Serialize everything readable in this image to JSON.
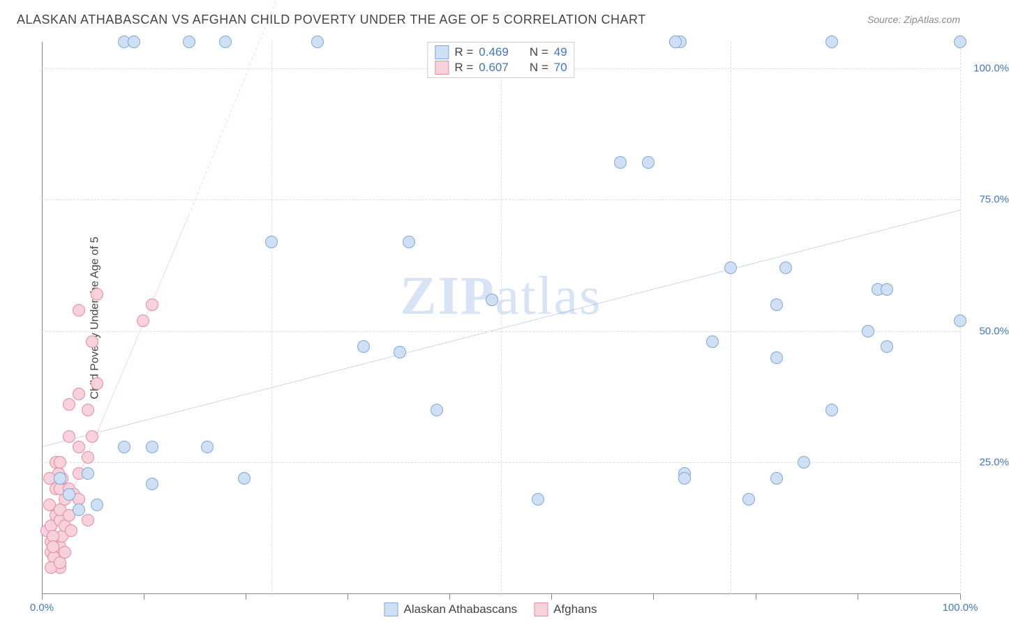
{
  "title": "ALASKAN ATHABASCAN VS AFGHAN CHILD POVERTY UNDER THE AGE OF 5 CORRELATION CHART",
  "source_prefix": "Source: ",
  "source_name": "ZipAtlas.com",
  "watermark_bold": "ZIP",
  "watermark_rest": "atlas",
  "y_axis_title": "Child Poverty Under the Age of 5",
  "x_min_label": "0.0%",
  "x_max_label": "100.0%",
  "y_ticks": [
    {
      "pct": 25,
      "label": "25.0%"
    },
    {
      "pct": 50,
      "label": "50.0%"
    },
    {
      "pct": 75,
      "label": "75.0%"
    },
    {
      "pct": 100,
      "label": "100.0%"
    }
  ],
  "x_grid_positions_pct": [
    25,
    50,
    75,
    100
  ],
  "x_tick_positions_pct": [
    0,
    11.1,
    22.2,
    33.3,
    44.4,
    55.5,
    66.6,
    77.7,
    88.8,
    100
  ],
  "x_domain": [
    0,
    100
  ],
  "y_domain": [
    0,
    105
  ],
  "series": {
    "athabascan": {
      "label": "Alaskan Athabascans",
      "R": "0.469",
      "N": "49",
      "fill": "#cfe0f5",
      "stroke": "#7da8d9",
      "trend_color": "#2566c4",
      "trend_width": 2,
      "trend": {
        "x1": 0,
        "y1": 28,
        "x2": 100,
        "y2": 73,
        "dash_from_x": 100
      },
      "points": [
        [
          2,
          22
        ],
        [
          3,
          19
        ],
        [
          4,
          16
        ],
        [
          5,
          23
        ],
        [
          9,
          105
        ],
        [
          16,
          105
        ],
        [
          9,
          28
        ],
        [
          12,
          21
        ],
        [
          6,
          17
        ],
        [
          18,
          28
        ],
        [
          12,
          28
        ],
        [
          22,
          22
        ],
        [
          30,
          105
        ],
        [
          25,
          67
        ],
        [
          69,
          105
        ],
        [
          35,
          47
        ],
        [
          39,
          46
        ],
        [
          40,
          67
        ],
        [
          43,
          35
        ],
        [
          54,
          18
        ],
        [
          63,
          82
        ],
        [
          66,
          82
        ],
        [
          70,
          23
        ],
        [
          70,
          22
        ],
        [
          73,
          48
        ],
        [
          75,
          62
        ],
        [
          80,
          45
        ],
        [
          77,
          18
        ],
        [
          80,
          22
        ],
        [
          81,
          62
        ],
        [
          80,
          55
        ],
        [
          83,
          25
        ],
        [
          86,
          105
        ],
        [
          86,
          35
        ],
        [
          90,
          50
        ],
        [
          91,
          58
        ],
        [
          92,
          47
        ],
        [
          92,
          58
        ],
        [
          100,
          52
        ],
        [
          100,
          105
        ],
        [
          69.5,
          105
        ],
        [
          69,
          105
        ],
        [
          49,
          56
        ],
        [
          20,
          105
        ],
        [
          10,
          105
        ]
      ]
    },
    "afghan": {
      "label": "Afghans",
      "R": "0.607",
      "N": "70",
      "fill": "#f7d1db",
      "stroke": "#e58ba6",
      "trend_color": "#e44d7a",
      "trend_width": 2,
      "trend": {
        "x1": 1,
        "y1": 10,
        "x2": 16,
        "y2": 72,
        "dash_from_x": 16,
        "dash_x2": 26,
        "dash_y2": 115
      },
      "points": [
        [
          0.5,
          12
        ],
        [
          1,
          10
        ],
        [
          1,
          8
        ],
        [
          1.3,
          7
        ],
        [
          2,
          5
        ],
        [
          2,
          9
        ],
        [
          2.2,
          11
        ],
        [
          1,
          13
        ],
        [
          1.5,
          15
        ],
        [
          2,
          14
        ],
        [
          0.8,
          17
        ],
        [
          2.5,
          13
        ],
        [
          2,
          16
        ],
        [
          1.2,
          11
        ],
        [
          2.5,
          18
        ],
        [
          1.5,
          20
        ],
        [
          2,
          20
        ],
        [
          3,
          20
        ],
        [
          2.2,
          22
        ],
        [
          1.8,
          23
        ],
        [
          0.8,
          22
        ],
        [
          3.5,
          19
        ],
        [
          4,
          18
        ],
        [
          4,
          23
        ],
        [
          5,
          14
        ],
        [
          3,
          30
        ],
        [
          4,
          28
        ],
        [
          5,
          26
        ],
        [
          5.5,
          30
        ],
        [
          3,
          36
        ],
        [
          4,
          38
        ],
        [
          5,
          35
        ],
        [
          6,
          40
        ],
        [
          5.5,
          48
        ],
        [
          4,
          54
        ],
        [
          6,
          57
        ],
        [
          11,
          52
        ],
        [
          12,
          55
        ],
        [
          1,
          5
        ],
        [
          2,
          6
        ],
        [
          2.5,
          8
        ],
        [
          1.2,
          9
        ],
        [
          3.2,
          12
        ],
        [
          3,
          15
        ],
        [
          1.5,
          25
        ],
        [
          2,
          25
        ]
      ]
    }
  },
  "legend_top": {
    "R_label": "R =",
    "N_label": "N ="
  },
  "colors": {
    "grid": "#dddddd",
    "axis": "#888888",
    "axis_label": "#4077c0",
    "text": "#444444",
    "background": "#ffffff"
  },
  "font": {
    "title_size": 18,
    "axis_label_size": 15,
    "legend_size": 17,
    "axis_title_size": 16,
    "watermark_size": 78
  }
}
